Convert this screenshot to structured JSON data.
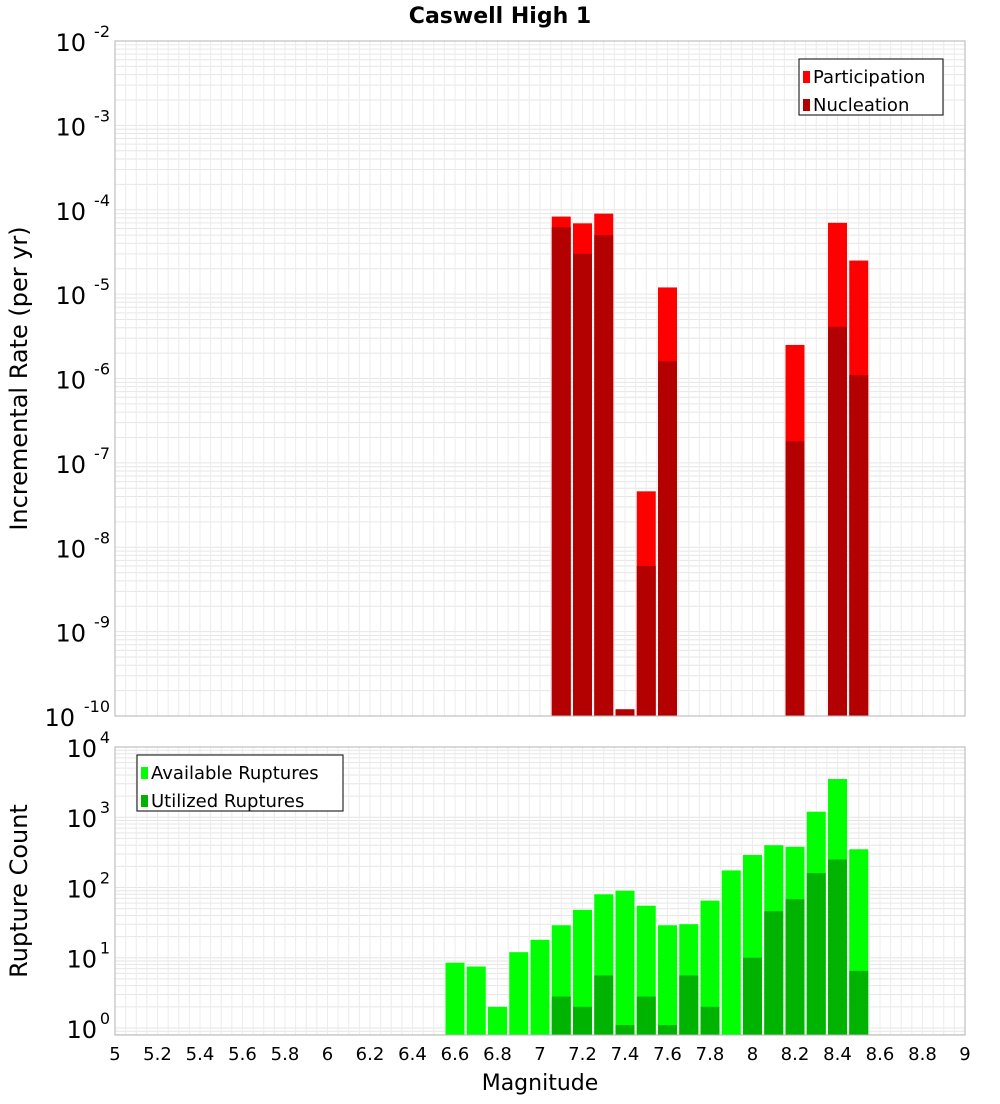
{
  "chart_data": [
    {
      "type": "bar",
      "title": "Caswell High 1",
      "xlabel": "",
      "ylabel": "Incremental Rate (per yr)",
      "yscale": "log",
      "ylim_exp": [
        -10,
        -2
      ],
      "xlim": [
        5,
        9
      ],
      "legend_position": "top-right",
      "y_ticks": [
        {
          "base": "10",
          "exp": "-10"
        },
        {
          "base": "10",
          "exp": "-9"
        },
        {
          "base": "10",
          "exp": "-8"
        },
        {
          "base": "10",
          "exp": "-7"
        },
        {
          "base": "10",
          "exp": "-6"
        },
        {
          "base": "10",
          "exp": "-5"
        },
        {
          "base": "10",
          "exp": "-4"
        },
        {
          "base": "10",
          "exp": "-3"
        },
        {
          "base": "10",
          "exp": "-2"
        }
      ],
      "x": [
        7.1,
        7.2,
        7.3,
        7.4,
        7.5,
        7.6,
        8.2,
        8.4,
        8.5
      ],
      "series": [
        {
          "name": "Participation",
          "color": "#ff0000",
          "values": [
            8.3e-05,
            6.9e-05,
            9e-05,
            1.2e-10,
            4.6e-08,
            1.2e-05,
            2.5e-06,
            7e-05,
            2.5e-05
          ]
        },
        {
          "name": "Nucleation",
          "color": "#b30000",
          "values": [
            6.2e-05,
            3e-05,
            5e-05,
            1.2e-10,
            6e-09,
            1.6e-06,
            1.8e-07,
            4.1e-06,
            1.1e-06
          ]
        }
      ]
    },
    {
      "type": "bar",
      "title": "",
      "xlabel": "Magnitude",
      "ylabel": "Rupture Count",
      "yscale": "log",
      "ylim_exp": [
        -0.1,
        4
      ],
      "xlim": [
        5,
        9
      ],
      "legend_position": "top-left",
      "y_ticks": [
        {
          "base": "10",
          "exp": "0"
        },
        {
          "base": "10",
          "exp": "1"
        },
        {
          "base": "10",
          "exp": "2"
        },
        {
          "base": "10",
          "exp": "3"
        },
        {
          "base": "10",
          "exp": "4"
        }
      ],
      "x_ticks": [
        "5",
        "5.2",
        "5.4",
        "5.6",
        "5.8",
        "6",
        "6.2",
        "6.4",
        "6.6",
        "6.8",
        "7",
        "7.2",
        "7.4",
        "7.6",
        "7.8",
        "8",
        "8.2",
        "8.4",
        "8.6",
        "8.8",
        "9"
      ],
      "x_tick_values": [
        5,
        5.2,
        5.4,
        5.6,
        5.8,
        6,
        6.2,
        6.4,
        6.6,
        6.8,
        7,
        7.2,
        7.4,
        7.6,
        7.8,
        8,
        8.2,
        8.4,
        8.6,
        8.8,
        9
      ],
      "x": [
        6.6,
        6.7,
        6.8,
        6.9,
        7.0,
        7.1,
        7.2,
        7.3,
        7.4,
        7.5,
        7.6,
        7.7,
        7.8,
        7.9,
        8.0,
        8.1,
        8.2,
        8.3,
        8.4,
        8.5
      ],
      "series": [
        {
          "name": "Available Ruptures",
          "color": "#00ff00",
          "values": [
            8.5,
            7.5,
            2,
            12,
            18,
            29,
            48,
            80,
            90,
            55,
            29,
            30,
            65,
            175,
            290,
            400,
            380,
            1200,
            3500,
            350
          ]
        },
        {
          "name": "Utilized Ruptures",
          "color": "#00b300",
          "values": [
            0,
            0,
            0,
            0,
            0,
            2.8,
            2,
            5.6,
            1.1,
            2.8,
            1.1,
            5.6,
            2,
            0,
            10,
            46,
            68,
            160,
            250,
            6.5
          ]
        }
      ]
    }
  ]
}
